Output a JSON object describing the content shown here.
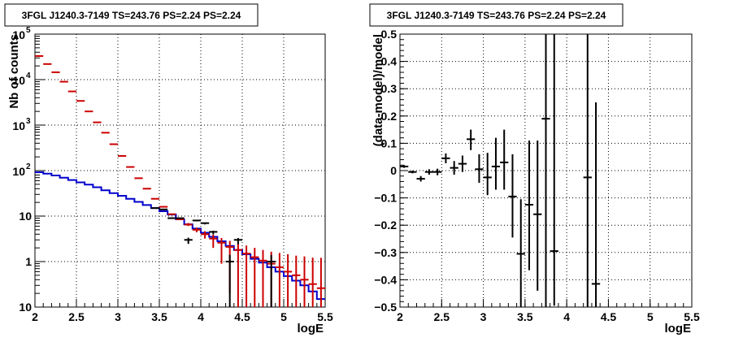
{
  "chart_data": [
    {
      "type": "histogram",
      "title": "3FGL J1240.3-7149 TS=243.76 PS=2.24 PS=2.24",
      "xlabel": "logE",
      "ylabel": "Nb of counts",
      "xlim": [
        2,
        5.5
      ],
      "ylim": [
        0.1,
        100000
      ],
      "yscale": "log",
      "grid": true,
      "x_ticks": [
        "2",
        "2.5",
        "3",
        "3.5",
        "4",
        "4.5",
        "5",
        "5.5"
      ],
      "y_ticks": [
        "10",
        "1",
        "10",
        "10^2",
        "10^3",
        "10^4",
        "10^5"
      ],
      "series": [
        {
          "color": "#cc0000",
          "style": "errorbar",
          "x": [
            2.05,
            2.15,
            2.25,
            2.35,
            2.45,
            2.55,
            2.65,
            2.75,
            2.85,
            2.95,
            3.05,
            3.15,
            3.25,
            3.35,
            3.45,
            3.55,
            3.65,
            3.75,
            3.85,
            3.95,
            4.05,
            4.15,
            4.25,
            4.35,
            4.45,
            4.55,
            4.65,
            4.75,
            4.85,
            4.95,
            5.05,
            5.15,
            5.25,
            5.35,
            5.45
          ],
          "y": [
            33000,
            22000,
            14500,
            9000,
            5500,
            3400,
            2000,
            1150,
            680,
            380,
            210,
            120,
            68,
            40,
            24,
            16,
            11,
            8.5,
            6.5,
            5,
            4,
            3.2,
            2.6,
            2.1,
            1.8,
            1.5,
            1.25,
            1.05,
            0.9,
            0.75,
            0.6,
            0.5,
            0.4,
            0.32,
            0.26
          ],
          "err_low": [
            0.2,
            0.15,
            0.15,
            0.15,
            0.15,
            0.15,
            0.15,
            0.15,
            0.15,
            0.15,
            0.15,
            0.15,
            0.15,
            0.15,
            0.15,
            0.15,
            0.2,
            0.35,
            0.45,
            0.6,
            0.8,
            1.2,
            1.7,
            1.9,
            1.7,
            1.5,
            1.3,
            1.1,
            0.95,
            0.75,
            0.55,
            0.45,
            0.35,
            0.27,
            0.2
          ],
          "err_high": [
            0.15,
            0.15,
            0.15,
            0.15,
            0.15,
            0.15,
            0.15,
            0.15,
            0.15,
            0.15,
            0.15,
            0.15,
            0.15,
            0.15,
            0.15,
            0.15,
            0.3,
            0.5,
            0.55,
            0.6,
            0.65,
            0.7,
            0.7,
            0.75,
            0.75,
            0.75,
            0.75,
            0.75,
            0.75,
            0.8,
            0.85,
            0.85,
            0.9,
            0.9,
            0.95
          ]
        },
        {
          "color": "#000000",
          "style": "errorbar",
          "x": [
            3.45,
            3.55,
            3.65,
            3.75,
            3.85,
            3.95,
            4.05,
            4.15,
            4.35,
            4.45,
            4.85
          ],
          "y": [
            15,
            14,
            9,
            9,
            3,
            8,
            7,
            4.5,
            1,
            3,
            1
          ],
          "err_low": [
            0.15,
            0.15,
            0.15,
            0.2,
            0.55,
            0.35,
            0.45,
            0.55,
            1.0,
            0.6,
            1.0
          ],
          "err_high": [
            0.15,
            0.15,
            0.25,
            0.2,
            0.35,
            0.2,
            0.2,
            0.25,
            0.4,
            0.3,
            0.4
          ]
        },
        {
          "color": "#0000cc",
          "style": "step",
          "x": [
            2.0,
            2.1,
            2.2,
            2.3,
            2.4,
            2.5,
            2.6,
            2.7,
            2.8,
            2.9,
            3.0,
            3.1,
            3.2,
            3.3,
            3.4,
            3.5,
            3.6,
            3.7,
            3.8,
            3.9,
            4.0,
            4.1,
            4.2,
            4.3,
            4.4,
            4.5,
            4.6,
            4.7,
            4.8,
            4.9,
            5.0,
            5.1,
            5.2,
            5.3,
            5.4
          ],
          "y": [
            92,
            86,
            78,
            70,
            62,
            55,
            49,
            43,
            37,
            32,
            28,
            24,
            20.5,
            17.5,
            15,
            12.8,
            10.8,
            8.5,
            6.6,
            5.3,
            4.3,
            3.5,
            2.8,
            2.2,
            1.8,
            1.45,
            1.15,
            0.95,
            0.75,
            0.6,
            0.48,
            0.38,
            0.3,
            0.22,
            0.15
          ]
        }
      ]
    },
    {
      "type": "scatter",
      "title": "3FGL J1240.3-7149 TS=243.76 PS=2.24 PS=2.24",
      "xlabel": "logE",
      "ylabel": "(data-model)/model",
      "xlim": [
        2,
        5.5
      ],
      "ylim": [
        -0.5,
        0.5
      ],
      "grid": true,
      "x_ticks": [
        "2",
        "2.5",
        "3",
        "3.5",
        "4",
        "4.5",
        "5",
        "5.5"
      ],
      "y_ticks": [
        "−0.5",
        "−0.4",
        "−0.3",
        "−0.2",
        "−0.1",
        "0",
        "0.1",
        "0.2",
        "0.3",
        "0.4",
        "0.5"
      ],
      "series": [
        {
          "color": "#000000",
          "style": "errorbar",
          "x": [
            2.05,
            2.15,
            2.25,
            2.35,
            2.45,
            2.55,
            2.65,
            2.75,
            2.85,
            2.95,
            3.05,
            3.15,
            3.25,
            3.35,
            3.45,
            3.55,
            3.65,
            3.75,
            3.85,
            4.25,
            4.35
          ],
          "y": [
            0.015,
            -0.005,
            -0.03,
            -0.005,
            -0.005,
            0.045,
            0.01,
            0.025,
            0.115,
            0.005,
            -0.025,
            0.015,
            0.03,
            -0.095,
            -0.305,
            -0.125,
            -0.16,
            0.19,
            -0.295,
            -0.025,
            -0.415
          ],
          "err_low": [
            0.005,
            0.005,
            0.01,
            0.01,
            0.012,
            0.018,
            0.025,
            0.03,
            0.04,
            0.05,
            0.065,
            0.085,
            0.1,
            0.15,
            0.2,
            0.24,
            0.28,
            0.7,
            0.2,
            0.6,
            0.085
          ],
          "err_high": [
            0.005,
            0.005,
            0.01,
            0.01,
            0.012,
            0.018,
            0.025,
            0.03,
            0.035,
            0.055,
            0.09,
            0.105,
            0.12,
            0.155,
            0.2,
            0.235,
            0.27,
            0.31,
            0.8,
            0.525,
            0.665
          ]
        }
      ]
    }
  ]
}
